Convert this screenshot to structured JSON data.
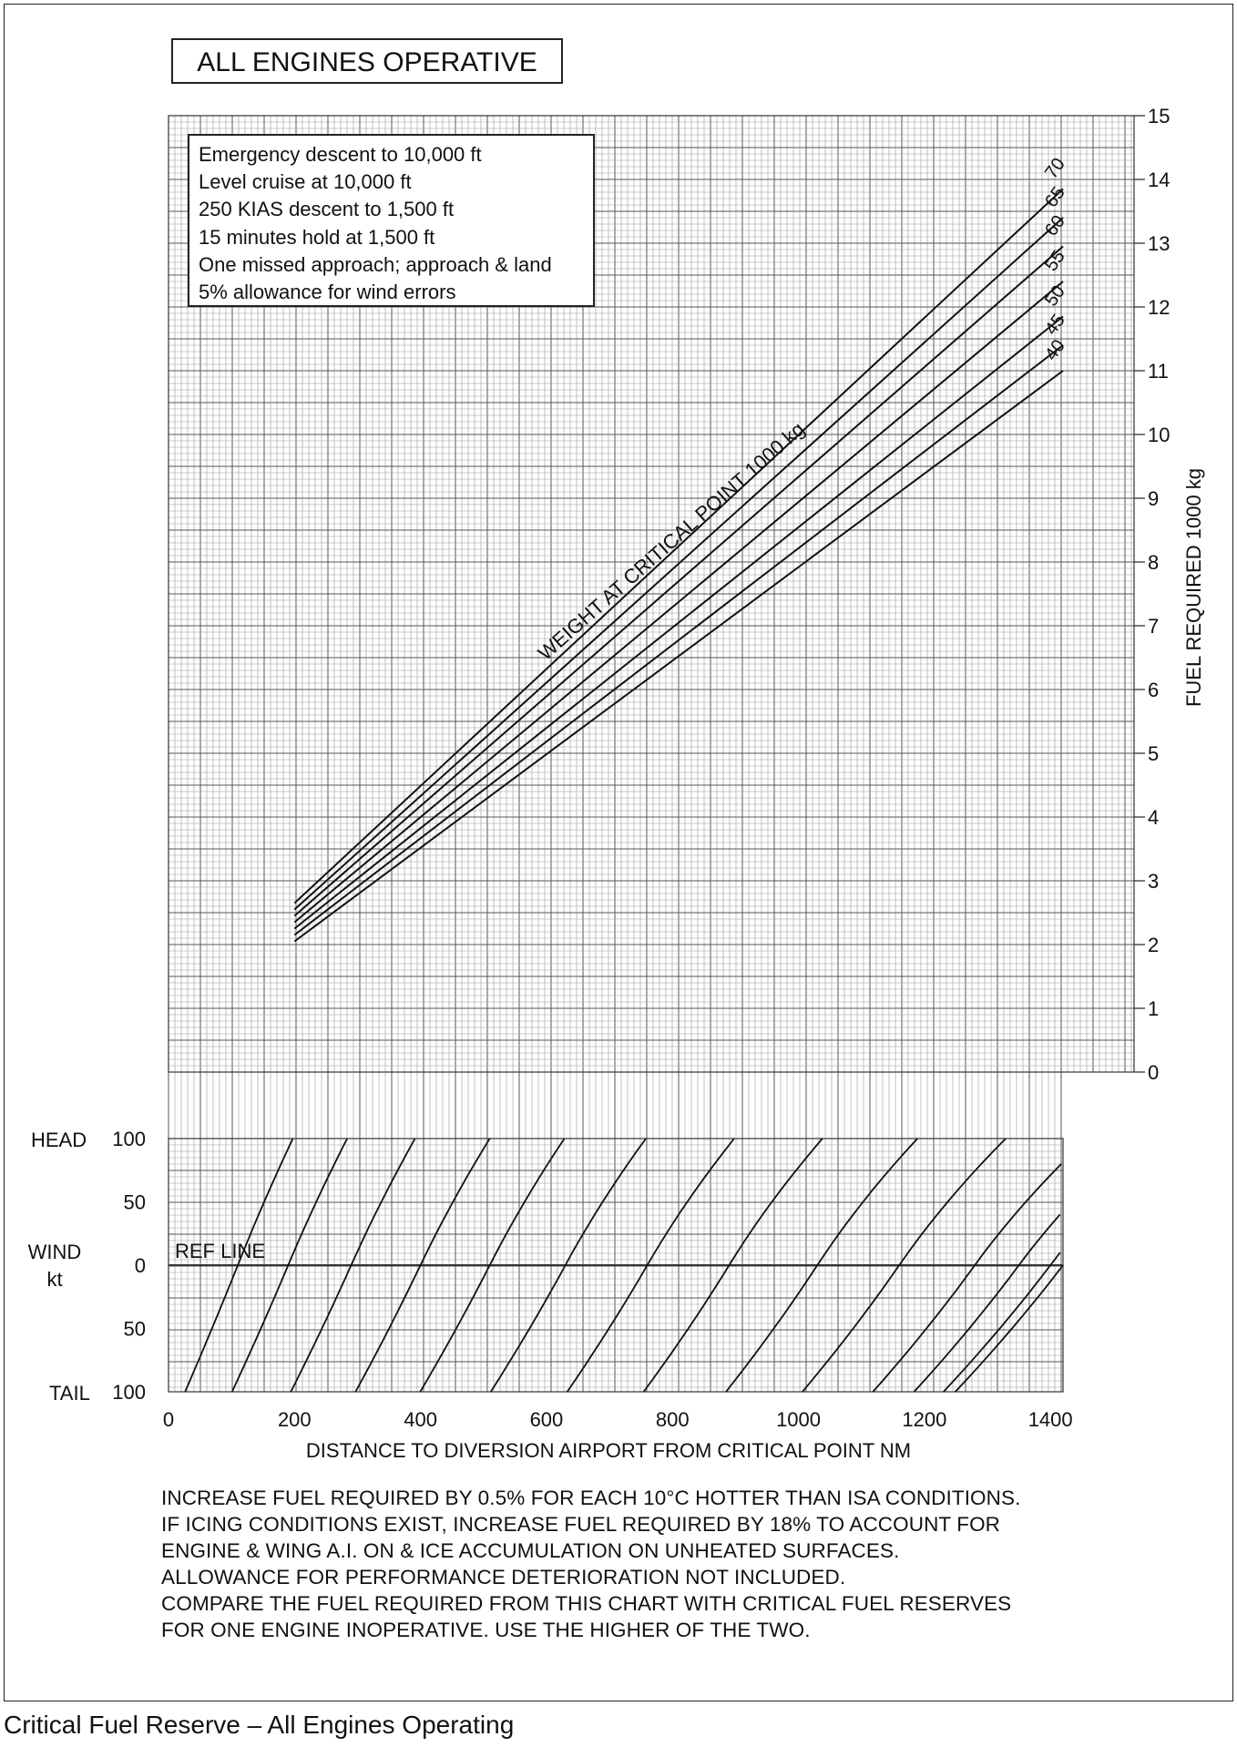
{
  "caption": "Critical Fuel Reserve – All Engines Operating",
  "chart_data": [
    {
      "type": "line",
      "title": "ALL ENGINES OPERATIVE",
      "conditions": [
        "Emergency descent to 10,000 ft",
        "Level cruise at 10,000 ft",
        "250 KIAS descent to 1,500 ft",
        "15 minutes hold at 1,500 ft",
        "One missed approach; approach & land",
        "5% allowance for wind errors"
      ],
      "xlabel": "DISTANCE TO DIVERSION AIRPORT FROM CRITICAL POINT   NM",
      "ylabel": "FUEL REQUIRED   1000 kg",
      "xlim": [
        0,
        1420
      ],
      "ylim": [
        0,
        15
      ],
      "x_ticks": [
        "0",
        "200",
        "400",
        "600",
        "800",
        "1000",
        "1200",
        "1400"
      ],
      "y_ticks": [
        "0",
        "1",
        "2",
        "3",
        "4",
        "5",
        "6",
        "7",
        "8",
        "9",
        "10",
        "11",
        "12",
        "13",
        "14",
        "15"
      ],
      "grid": true,
      "family_label": "WEIGHT AT CRITICAL POINT  1000 kg",
      "series": [
        {
          "name": "40",
          "x": [
            200,
            1420
          ],
          "y": [
            2.05,
            11.0
          ]
        },
        {
          "name": "45",
          "x": [
            200,
            1420
          ],
          "y": [
            2.15,
            11.4
          ]
        },
        {
          "name": "50",
          "x": [
            200,
            1420
          ],
          "y": [
            2.25,
            11.85
          ]
        },
        {
          "name": "55",
          "x": [
            200,
            1420
          ],
          "y": [
            2.35,
            12.4
          ]
        },
        {
          "name": "60",
          "x": [
            200,
            1420
          ],
          "y": [
            2.45,
            12.95
          ]
        },
        {
          "name": "65",
          "x": [
            200,
            1420
          ],
          "y": [
            2.55,
            13.4
          ]
        },
        {
          "name": "70",
          "x": [
            200,
            1420
          ],
          "y": [
            2.65,
            13.85
          ]
        }
      ]
    },
    {
      "type": "line",
      "title": "",
      "xlabel": "DISTANCE TO DIVERSION AIRPORT FROM CRITICAL POINT   NM",
      "ylabel": "WIND kt",
      "y_end_labels": {
        "top": "HEAD",
        "bottom": "TAIL"
      },
      "y_ticks": [
        "100",
        "50",
        "0",
        "50",
        "100"
      ],
      "ref_line_label": "REF LINE",
      "wind_range": [
        -100,
        100
      ],
      "guide_lines_still_air_distance_nm": [
        110,
        190,
        290,
        400,
        510,
        630,
        760,
        890,
        1030,
        1160,
        1280,
        1350,
        1400,
        1420
      ],
      "grid": true
    }
  ],
  "notes": [
    "INCREASE FUEL REQUIRED BY 0.5% FOR EACH 10°C HOTTER THAN ISA CONDITIONS.",
    "IF ICING CONDITIONS EXIST, INCREASE FUEL REQUIRED BY 18% TO ACCOUNT FOR",
    "ENGINE & WING A.I. ON & ICE ACCUMULATION ON UNHEATED SURFACES.",
    "ALLOWANCE FOR PERFORMANCE DETERIORATION NOT INCLUDED.",
    "COMPARE THE FUEL REQUIRED FROM THIS CHART WITH CRITICAL FUEL RESERVES",
    "FOR ONE ENGINE INOPERATIVE.  USE THE HIGHER OF THE TWO."
  ]
}
